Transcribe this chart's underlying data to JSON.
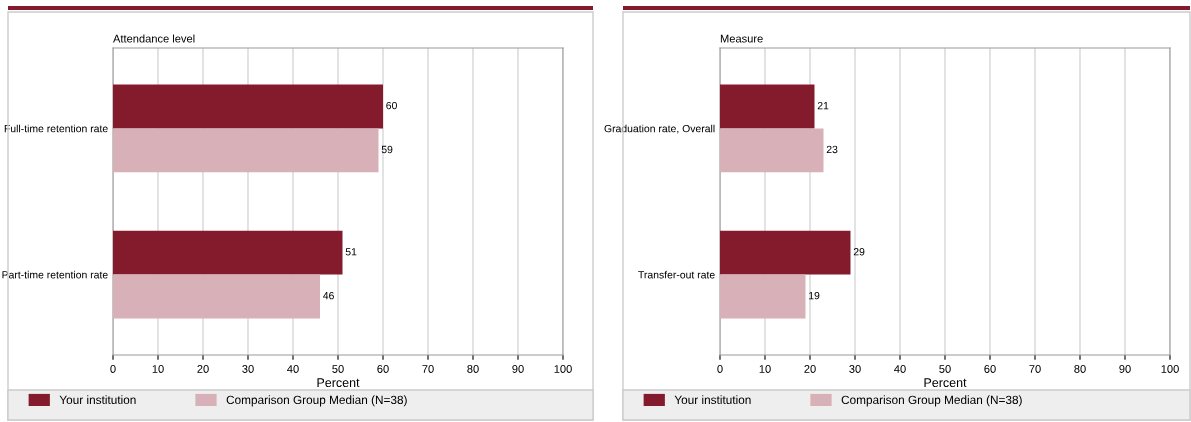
{
  "chart_data": [
    {
      "type": "bar",
      "orientation": "horizontal",
      "title": "Attendance level",
      "xlabel": "Percent",
      "categories": [
        "Full-time retention rate",
        "Part-time retention rate"
      ],
      "series": [
        {
          "name": "Your institution",
          "color": "#841b2d",
          "values": [
            60,
            51
          ]
        },
        {
          "name": "Comparison Group Median (N=38)",
          "color": "#d7b1b7",
          "values": [
            59,
            46
          ]
        }
      ],
      "xlim": [
        0,
        100
      ],
      "xticks": [
        0,
        10,
        20,
        30,
        40,
        50,
        60,
        70,
        80,
        90,
        100
      ],
      "grid": "x",
      "legend": "bottom",
      "data_labels": true
    },
    {
      "type": "bar",
      "orientation": "horizontal",
      "title": "Measure",
      "xlabel": "Percent",
      "categories": [
        "Graduation rate, Overall",
        "Transfer-out rate"
      ],
      "series": [
        {
          "name": "Your institution",
          "color": "#841b2d",
          "values": [
            21,
            29
          ]
        },
        {
          "name": "Comparison Group Median (N=38)",
          "color": "#d7b1b7",
          "values": [
            23,
            19
          ]
        }
      ],
      "xlim": [
        0,
        100
      ],
      "xticks": [
        0,
        10,
        20,
        30,
        40,
        50,
        60,
        70,
        80,
        90,
        100
      ],
      "grid": "x",
      "legend": "bottom",
      "data_labels": true
    }
  ]
}
